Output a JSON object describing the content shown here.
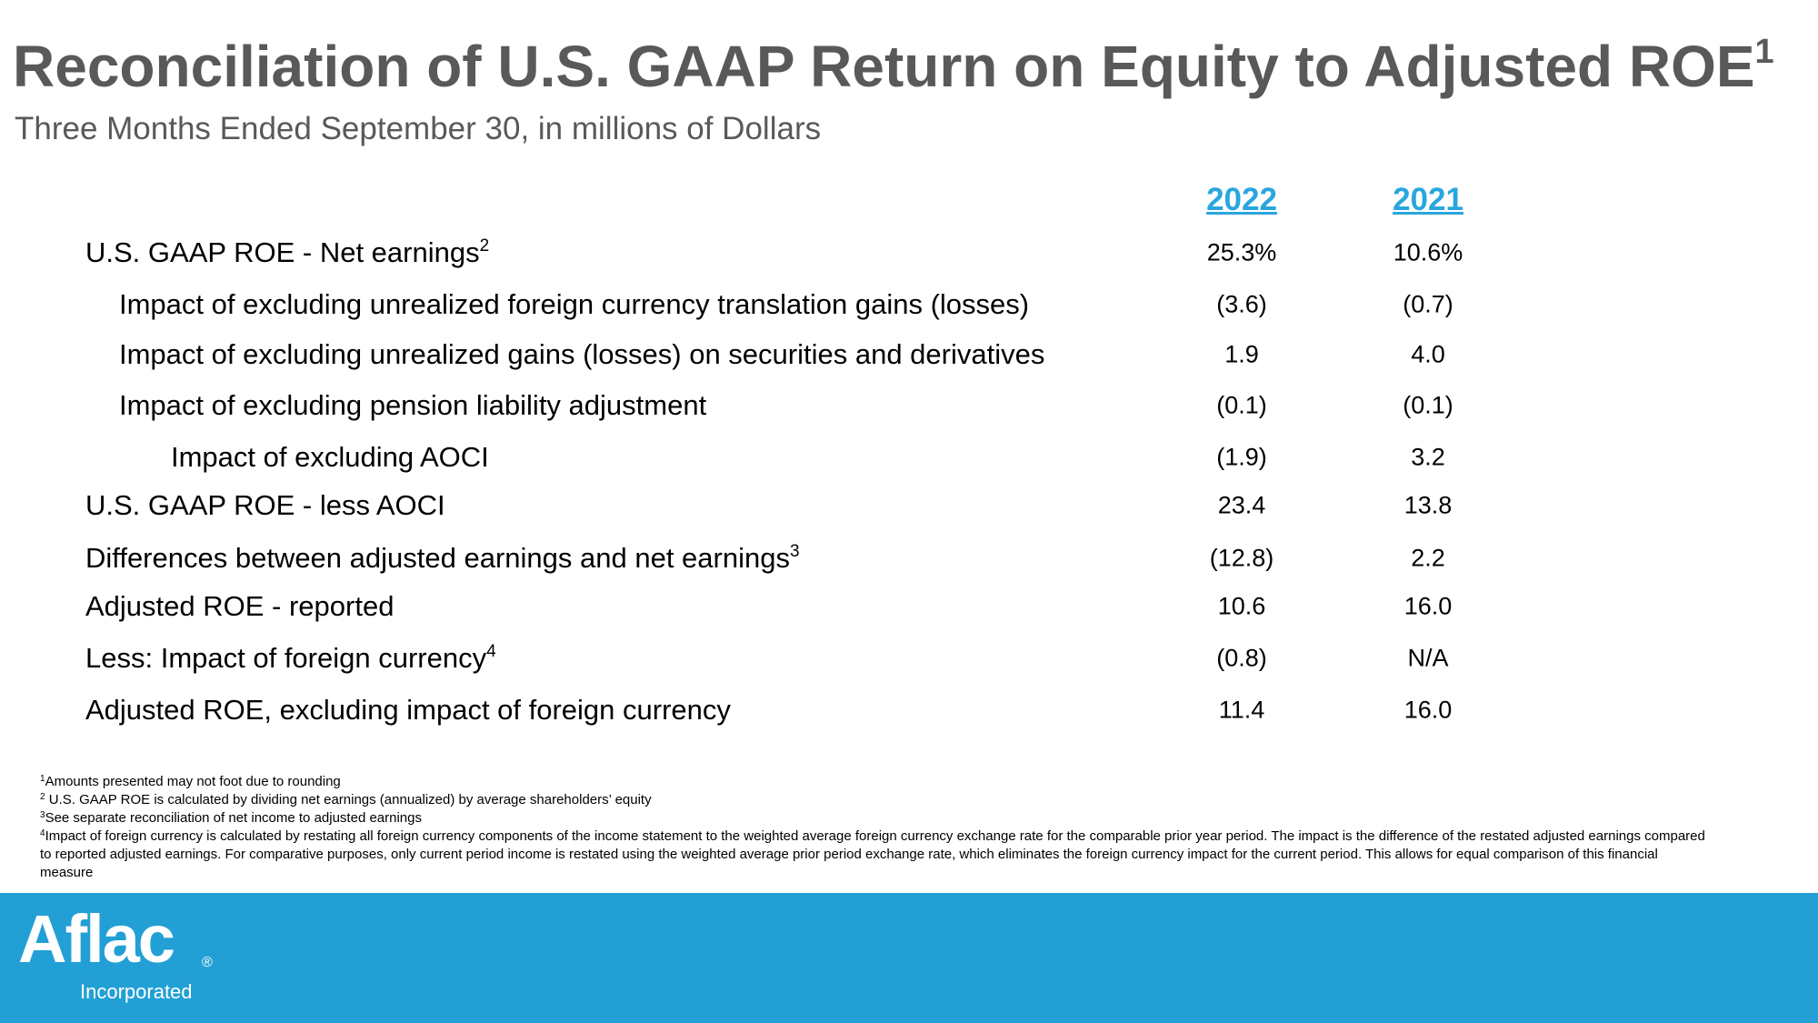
{
  "header": {
    "title": "Reconciliation of U.S. GAAP Return on Equity to Adjusted ROE",
    "title_sup": "1",
    "subtitle": "Three Months Ended September 30, in millions of Dollars"
  },
  "table": {
    "columns": [
      "2022",
      "2021"
    ],
    "rows": [
      {
        "label": "U.S. GAAP ROE - Net earnings",
        "sup": "2",
        "indent": 0,
        "values": [
          "25.3%",
          "10.6%"
        ]
      },
      {
        "label": "Impact of excluding unrealized foreign currency translation gains (losses)",
        "indent": 1,
        "values": [
          "(3.6)",
          "(0.7)"
        ]
      },
      {
        "label": "Impact of excluding unrealized gains (losses) on securities and derivatives",
        "indent": 1,
        "values": [
          "1.9",
          "4.0"
        ]
      },
      {
        "label": "Impact of excluding pension liability adjustment",
        "indent": 1,
        "values": [
          "(0.1)",
          "(0.1)"
        ]
      },
      {
        "label": "Impact of excluding AOCI",
        "indent": 2,
        "values": [
          "(1.9)",
          "3.2"
        ]
      },
      {
        "label": "U.S. GAAP ROE - less AOCI",
        "indent": 0,
        "values": [
          "23.4",
          "13.8"
        ]
      },
      {
        "label": "Differences between adjusted earnings and net earnings",
        "sup": "3",
        "indent": 0,
        "values": [
          "(12.8)",
          "2.2"
        ]
      },
      {
        "label": "Adjusted ROE - reported",
        "indent": 0,
        "values": [
          "10.6",
          "16.0"
        ]
      },
      {
        "label": "Less: Impact of foreign currency",
        "sup": "4",
        "indent": 0,
        "values": [
          "(0.8)",
          "N/A"
        ]
      },
      {
        "label": "Adjusted ROE, excluding impact of foreign currency",
        "indent": 0,
        "values": [
          "11.4",
          "16.0"
        ]
      }
    ]
  },
  "footnotes": [
    {
      "mark": "1",
      "text": "Amounts presented may not foot due to rounding"
    },
    {
      "mark": "2",
      "text": " U.S. GAAP ROE is calculated by dividing net earnings (annualized) by average shareholders’ equity"
    },
    {
      "mark": "3",
      "text": "See separate reconciliation of net income to adjusted earnings"
    },
    {
      "mark": "4",
      "text": "Impact of foreign currency is calculated by restating all foreign currency components of the income statement to the weighted average foreign currency exchange rate for the comparable prior year period. The impact is the difference of the restated adjusted earnings compared to reported adjusted earnings. For comparative purposes, only current period income is restated using the weighted average prior period exchange rate, which eliminates the foreign currency impact for the current period. This allows for equal comparison of this financial  measure"
    }
  ],
  "logo": {
    "name": "Aflac",
    "mark": "®",
    "tagline": "Incorporated"
  }
}
